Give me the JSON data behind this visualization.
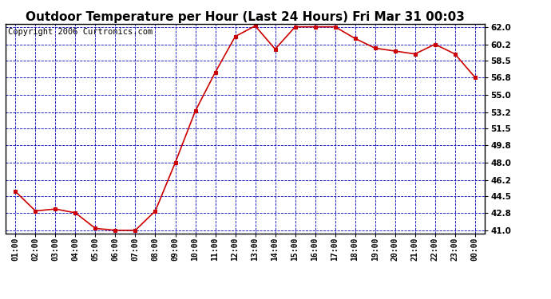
{
  "title": "Outdoor Temperature per Hour (Last 24 Hours) Fri Mar 31 00:03",
  "copyright": "Copyright 2006 Curtronics.com",
  "x_labels": [
    "01:00",
    "02:00",
    "03:00",
    "04:00",
    "05:00",
    "06:00",
    "07:00",
    "08:00",
    "09:00",
    "10:00",
    "11:00",
    "12:00",
    "13:00",
    "14:00",
    "15:00",
    "16:00",
    "17:00",
    "18:00",
    "19:00",
    "20:00",
    "21:00",
    "22:00",
    "23:00",
    "00:00"
  ],
  "temperatures": [
    45.0,
    43.0,
    43.2,
    42.8,
    41.2,
    41.0,
    41.0,
    43.0,
    48.0,
    53.3,
    57.3,
    61.0,
    62.1,
    59.7,
    62.0,
    62.0,
    62.0,
    60.8,
    59.8,
    59.5,
    59.2,
    60.2,
    59.2,
    56.8
  ],
  "y_ticks": [
    41.0,
    42.8,
    44.5,
    46.2,
    48.0,
    49.8,
    51.5,
    53.2,
    55.0,
    56.8,
    58.5,
    60.2,
    62.0
  ],
  "y_min": 41.0,
  "y_max": 62.0,
  "line_color": "#cc0000",
  "marker_color": "#cc0000",
  "bg_color": "#ffffff",
  "plot_bg_color": "#ffffff",
  "grid_color": "#0000bb",
  "title_fontsize": 11,
  "copyright_fontsize": 7.5
}
